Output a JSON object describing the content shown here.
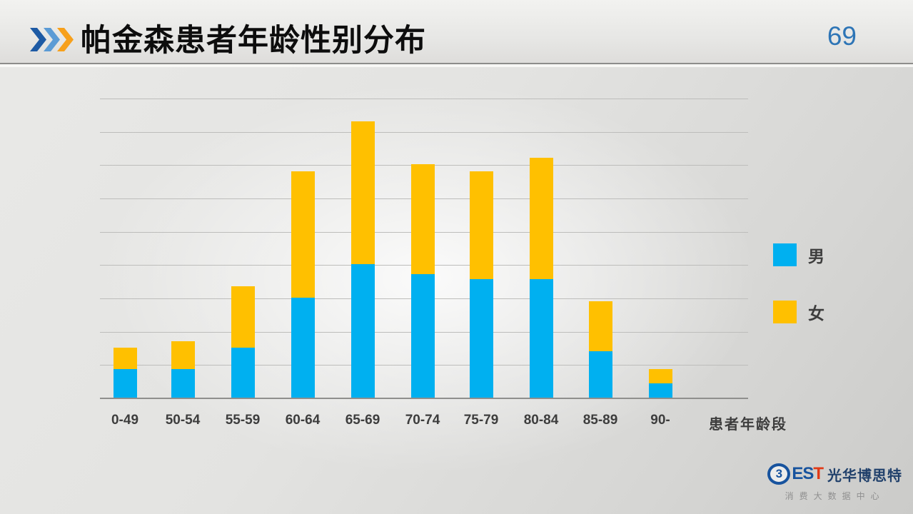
{
  "slide": {
    "header": {
      "title": "帕金森患者年龄性别分布",
      "page_number": "69"
    },
    "footer_logo": {
      "emblem_char": "3",
      "name_es": "ES",
      "name_t": "T",
      "name_cn": "光华博思特",
      "subtitle": "消费大数据中心"
    }
  },
  "chart_data": {
    "type": "bar",
    "stacked": true,
    "title": "帕金森患者年龄性别分布",
    "categories": [
      "0-49",
      "50-54",
      "55-59",
      "60-64",
      "65-69",
      "70-74",
      "75-79",
      "80-84",
      "85-89",
      "90-"
    ],
    "series": [
      {
        "name": "男",
        "color": "#00B0F0",
        "values": [
          0.85,
          0.85,
          1.5,
          3.0,
          4.0,
          3.7,
          3.55,
          3.55,
          1.4,
          0.43
        ]
      },
      {
        "name": "女",
        "color": "#FFC000",
        "values": [
          0.65,
          0.85,
          1.85,
          3.8,
          4.3,
          3.3,
          3.25,
          3.65,
          1.5,
          0.43
        ]
      }
    ],
    "xlabel": "患者年龄段",
    "ylabel": "",
    "y_axis": {
      "tick_labels_visible": false,
      "gridlines_visible": true,
      "gridline_count": 9,
      "ylim": [
        0,
        9
      ],
      "unit": "relative gridline units (no tick labels shown in chart)"
    },
    "legend_position": "right",
    "legend_entries": [
      "男",
      "女"
    ]
  },
  "colors": {
    "male_bar": "#00B0F0",
    "female_bar": "#FFC000",
    "page_number": "#2E75B6",
    "chevron_dark_blue": "#1D5AA4",
    "chevron_light_blue": "#5B9BD5",
    "chevron_orange": "#F7A01B",
    "gridline": "#BDBDBB",
    "baseline": "#8F8F8D",
    "logo_blue": "#17539E",
    "logo_red": "#E13A17"
  }
}
